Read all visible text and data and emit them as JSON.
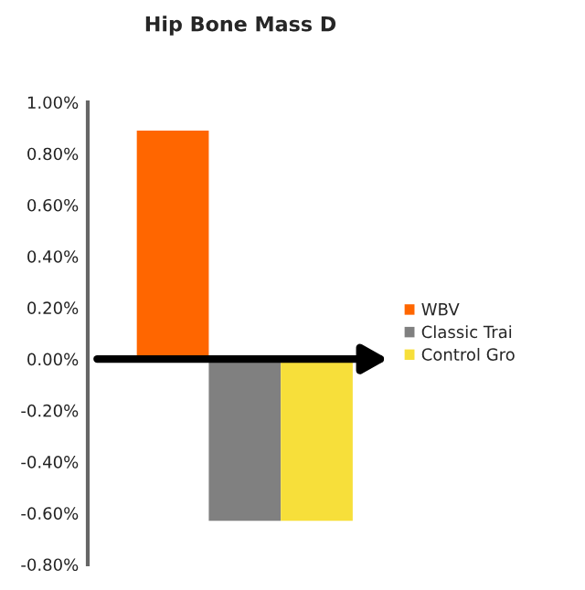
{
  "chart_data": {
    "type": "bar",
    "title": "Hip Bone Mass D",
    "categories": [
      null
    ],
    "series": [
      {
        "name": "WBV",
        "color": "#ff6600",
        "values": [
          0.89
        ]
      },
      {
        "name": "Classic Trai",
        "color": "#808080",
        "values": [
          -0.63
        ]
      },
      {
        "name": "Control Gro",
        "color": "#f7df3a",
        "values": [
          -0.63
        ]
      }
    ],
    "ylim": [
      -0.8,
      1.0
    ],
    "yticks": [
      {
        "value": -0.8,
        "label": "-0.80%"
      },
      {
        "value": -0.6,
        "label": "-0.60%"
      },
      {
        "value": -0.4,
        "label": "-0.40%"
      },
      {
        "value": -0.2,
        "label": "-0.20%"
      },
      {
        "value": 0,
        "label": "0.00%"
      },
      {
        "value": 0.2,
        "label": "0.20%"
      },
      {
        "value": 0.4,
        "label": "0.40%"
      },
      {
        "value": 0.6,
        "label": "0.60%"
      },
      {
        "value": 0.8,
        "label": "0.80%"
      },
      {
        "value": 1.0,
        "label": "1.00%"
      }
    ],
    "tick_labels": "y",
    "grid": false,
    "legend": "right"
  }
}
